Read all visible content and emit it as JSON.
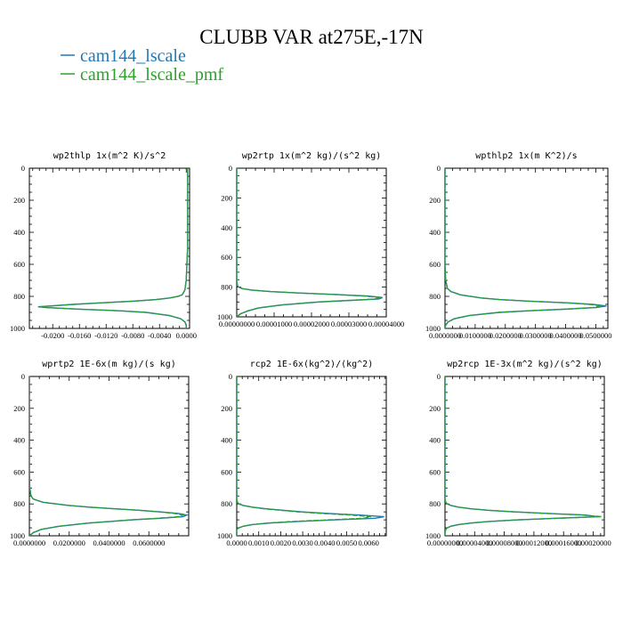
{
  "figure": {
    "title": "CLUBB VAR at275E,-17N",
    "legend": [
      {
        "label": "cam144_lscale",
        "color": "#1f77b4"
      },
      {
        "label": "cam144_lscale_pmf",
        "color": "#2ca02c"
      }
    ]
  },
  "chart_data": [
    {
      "type": "line",
      "title": "wp2thlp   1x(m^2 K)/s^2",
      "xlim": [
        -0.0235,
        0.0005
      ],
      "ylim": [
        1000,
        0
      ],
      "xticks": [
        "-0.0200",
        "-0.0160",
        "-0.0120",
        "-0.0080",
        "-0.0040",
        "0.0000"
      ],
      "xtick_values": [
        -0.02,
        -0.016,
        -0.012,
        -0.008,
        -0.004,
        0.0
      ],
      "yticks": [
        "0",
        "200",
        "400",
        "600",
        "800",
        "1000"
      ],
      "series": [
        {
          "name": "cam144_lscale",
          "color": "#1f77b4",
          "y": [
            0,
            100,
            200,
            300,
            400,
            500,
            600,
            700,
            760,
            790,
            800,
            810,
            820,
            830,
            840,
            850,
            860,
            865,
            870,
            880,
            890,
            900,
            920,
            940,
            960,
            980,
            1000
          ],
          "x": [
            0.0002,
            0.0002,
            0.0002,
            0.0002,
            0.0002,
            0.0002,
            0.0001,
            0.0,
            -0.0002,
            -0.0006,
            -0.0012,
            -0.0025,
            -0.0045,
            -0.008,
            -0.0125,
            -0.017,
            -0.0205,
            -0.0222,
            -0.021,
            -0.016,
            -0.01,
            -0.006,
            -0.0025,
            -0.0008,
            -0.0002,
            0.0,
            0.0
          ]
        },
        {
          "name": "cam144_lscale_pmf",
          "color": "#2ca02c",
          "y": [
            0,
            100,
            200,
            300,
            400,
            500,
            600,
            700,
            760,
            790,
            800,
            810,
            820,
            830,
            840,
            850,
            860,
            865,
            870,
            880,
            890,
            900,
            920,
            940,
            960,
            980,
            1000
          ],
          "x": [
            0.0002,
            0.0002,
            0.0002,
            0.0002,
            0.0002,
            0.0002,
            0.0001,
            0.0,
            -0.0002,
            -0.0006,
            -0.0012,
            -0.0025,
            -0.0045,
            -0.008,
            -0.0125,
            -0.0168,
            -0.0202,
            -0.0219,
            -0.0208,
            -0.0159,
            -0.0099,
            -0.006,
            -0.0025,
            -0.0008,
            -0.0002,
            0.0,
            0.0
          ]
        }
      ]
    },
    {
      "type": "line",
      "title": "wp2rtp   1x(m^2 kg)/(s^2 kg)",
      "xlim": [
        0.0,
        4e-05
      ],
      "ylim": [
        1000,
        0
      ],
      "xticks": [
        "0.00000000",
        "0.00001000",
        "0.00002000",
        "0.00003000",
        "0.00004000"
      ],
      "xtick_values": [
        0.0,
        1e-05,
        2e-05,
        3e-05,
        4e-05
      ],
      "yticks": [
        "0",
        "200",
        "400",
        "600",
        "800",
        "1000"
      ],
      "series": [
        {
          "name": "cam144_lscale",
          "color": "#1f77b4",
          "y": [
            0,
            200,
            400,
            600,
            700,
            760,
            790,
            800,
            810,
            820,
            830,
            840,
            850,
            860,
            870,
            880,
            890,
            900,
            920,
            940,
            960,
            980,
            1000
          ],
          "x": [
            0,
            0,
            0,
            0,
            0,
            0,
            2e-07,
            5e-07,
            1.5e-06,
            4e-06,
            9e-06,
            1.7e-05,
            2.7e-05,
            3.5e-05,
            3.9e-05,
            3.8e-05,
            3e-05,
            2.2e-05,
            1.2e-05,
            6e-06,
            3e-06,
            1e-06,
            0
          ]
        },
        {
          "name": "cam144_lscale_pmf",
          "color": "#2ca02c",
          "y": [
            0,
            200,
            400,
            600,
            700,
            760,
            790,
            800,
            810,
            820,
            830,
            840,
            850,
            860,
            870,
            880,
            890,
            900,
            920,
            940,
            960,
            980,
            1000
          ],
          "x": [
            0,
            0,
            0,
            0,
            0,
            0,
            2e-07,
            5e-07,
            1.5e-06,
            4e-06,
            9e-06,
            1.7e-05,
            2.6e-05,
            3.4e-05,
            3.85e-05,
            3.7e-05,
            2.95e-05,
            2.15e-05,
            1.18e-05,
            5.8e-06,
            2.9e-06,
            1e-06,
            0
          ]
        }
      ]
    },
    {
      "type": "line",
      "title": "wpthlp2   1x(m K^2)/s",
      "xlim": [
        0.0,
        0.054
      ],
      "ylim": [
        1000,
        0
      ],
      "xticks": [
        "0.0000000",
        "0.0100000",
        "0.0200000",
        "0.0300000",
        "0.0400000",
        "0.0500000"
      ],
      "xtick_values": [
        0.0,
        0.01,
        0.02,
        0.03,
        0.04,
        0.05
      ],
      "yticks": [
        "0",
        "200",
        "400",
        "600",
        "800",
        "1000"
      ],
      "series": [
        {
          "name": "cam144_lscale",
          "color": "#1f77b4",
          "y": [
            0,
            200,
            400,
            600,
            700,
            750,
            770,
            790,
            810,
            820,
            830,
            840,
            850,
            860,
            870,
            880,
            890,
            900,
            920,
            940,
            960,
            980,
            1000
          ],
          "x": [
            0,
            0,
            0,
            0,
            0.0002,
            0.0008,
            0.002,
            0.005,
            0.012,
            0.018,
            0.028,
            0.04,
            0.049,
            0.0535,
            0.05,
            0.04,
            0.028,
            0.018,
            0.008,
            0.003,
            0.001,
            0.0002,
            0
          ]
        },
        {
          "name": "cam144_lscale_pmf",
          "color": "#2ca02c",
          "y": [
            0,
            200,
            400,
            600,
            700,
            750,
            770,
            790,
            810,
            820,
            830,
            840,
            850,
            860,
            870,
            880,
            890,
            900,
            920,
            940,
            960,
            980,
            1000
          ],
          "x": [
            0,
            0,
            0,
            0,
            0.0002,
            0.0008,
            0.002,
            0.005,
            0.012,
            0.018,
            0.028,
            0.04,
            0.048,
            0.052,
            0.049,
            0.039,
            0.0275,
            0.0178,
            0.0079,
            0.003,
            0.001,
            0.0002,
            0
          ]
        }
      ]
    },
    {
      "type": "line",
      "title": "wprtp2   1E-6x(m kg)/(s kg)",
      "xlim": [
        0.0,
        0.08
      ],
      "ylim": [
        1000,
        0
      ],
      "xticks": [
        "0.0000000",
        "0.0200000",
        "0.0400000",
        "0.0600000"
      ],
      "xtick_values": [
        0.0,
        0.02,
        0.04,
        0.06
      ],
      "yticks": [
        "0",
        "200",
        "400",
        "600",
        "800",
        "1000"
      ],
      "series": [
        {
          "name": "cam144_lscale",
          "color": "#1f77b4",
          "y": [
            0,
            200,
            400,
            600,
            700,
            750,
            770,
            790,
            810,
            820,
            830,
            840,
            850,
            860,
            870,
            880,
            890,
            900,
            920,
            940,
            960,
            980,
            1000
          ],
          "x": [
            0,
            0,
            0,
            0,
            0.0002,
            0.0008,
            0.002,
            0.007,
            0.02,
            0.03,
            0.042,
            0.055,
            0.066,
            0.075,
            0.079,
            0.077,
            0.066,
            0.052,
            0.03,
            0.015,
            0.006,
            0.002,
            0
          ]
        },
        {
          "name": "cam144_lscale_pmf",
          "color": "#2ca02c",
          "y": [
            0,
            200,
            400,
            600,
            700,
            750,
            770,
            790,
            810,
            820,
            830,
            840,
            850,
            860,
            870,
            880,
            890,
            900,
            920,
            940,
            960,
            980,
            1000
          ],
          "x": [
            0,
            0,
            0,
            0,
            0.0002,
            0.0008,
            0.002,
            0.007,
            0.02,
            0.03,
            0.042,
            0.055,
            0.065,
            0.073,
            0.077,
            0.075,
            0.0645,
            0.051,
            0.0295,
            0.0148,
            0.006,
            0.002,
            0
          ]
        }
      ]
    },
    {
      "type": "line",
      "title": "rcp2   1E-6x(kg^2)/(kg^2)",
      "xlim": [
        0.0,
        0.0068
      ],
      "ylim": [
        1000,
        0
      ],
      "xticks": [
        "0.0000",
        "0.0010",
        "0.0020",
        "0.0030",
        "0.0040",
        "0.0050",
        "0.0060"
      ],
      "xtick_values": [
        0.0,
        0.001,
        0.002,
        0.003,
        0.004,
        0.005,
        0.006
      ],
      "yticks": [
        "0",
        "200",
        "400",
        "600",
        "800",
        "1000"
      ],
      "series": [
        {
          "name": "cam144_lscale",
          "color": "#1f77b4",
          "y": [
            0,
            200,
            400,
            600,
            700,
            770,
            790,
            800,
            810,
            820,
            830,
            840,
            850,
            860,
            870,
            880,
            890,
            900,
            910,
            920,
            930,
            940,
            950,
            960,
            980,
            1000
          ],
          "x": [
            0,
            0,
            0,
            0,
            0,
            0,
            3e-05,
            0.0001,
            0.0003,
            0.0007,
            0.0013,
            0.0021,
            0.003,
            0.0042,
            0.0056,
            0.0067,
            0.0063,
            0.0045,
            0.0028,
            0.0015,
            0.0007,
            0.0003,
            0.0001,
            0,
            0,
            0
          ]
        },
        {
          "name": "cam144_lscale_pmf",
          "color": "#2ca02c",
          "y": [
            0,
            200,
            400,
            600,
            700,
            770,
            790,
            800,
            810,
            820,
            830,
            840,
            850,
            860,
            870,
            880,
            890,
            900,
            910,
            920,
            930,
            940,
            950,
            960,
            980,
            1000
          ],
          "x": [
            0,
            0,
            0,
            0,
            0,
            0,
            3e-05,
            0.0001,
            0.0003,
            0.0007,
            0.0012,
            0.002,
            0.0028,
            0.0039,
            0.0052,
            0.0061,
            0.0058,
            0.0042,
            0.0026,
            0.0014,
            0.0007,
            0.0003,
            0.0001,
            0,
            0,
            0
          ]
        }
      ]
    },
    {
      "type": "line",
      "title": "wp2rcp   1E-3x(m^2 kg)/(s^2 kg)",
      "xlim": [
        0.0,
        0.000215
      ],
      "ylim": [
        1000,
        0
      ],
      "xticks": [
        "0.00000000",
        "0.00004000",
        "0.00008000",
        "0.00012000",
        "0.00016000",
        "0.00020000"
      ],
      "xtick_values": [
        0.0,
        4e-05,
        8e-05,
        0.00012,
        0.00016,
        0.0002
      ],
      "yticks": [
        "0",
        "200",
        "400",
        "600",
        "800",
        "1000"
      ],
      "series": [
        {
          "name": "cam144_lscale",
          "color": "#1f77b4",
          "y": [
            0,
            200,
            400,
            600,
            700,
            770,
            790,
            800,
            810,
            820,
            830,
            840,
            850,
            860,
            870,
            880,
            890,
            900,
            910,
            920,
            930,
            940,
            950,
            960,
            980,
            1000
          ],
          "x": [
            0,
            0,
            0,
            0,
            0,
            0,
            1e-06,
            3e-06,
            8e-06,
            1.8e-05,
            3.4e-05,
            5.8e-05,
            9.5e-05,
            0.00014,
            0.00019,
            0.000205,
            0.00015,
            0.0001,
            6e-05,
            3.5e-05,
            1.8e-05,
            8e-06,
            3e-06,
            1e-06,
            0,
            0
          ]
        },
        {
          "name": "cam144_lscale_pmf",
          "color": "#2ca02c",
          "y": [
            0,
            200,
            400,
            600,
            700,
            770,
            790,
            800,
            810,
            820,
            830,
            840,
            850,
            860,
            870,
            880,
            890,
            900,
            910,
            920,
            930,
            940,
            950,
            960,
            980,
            1000
          ],
          "x": [
            0,
            0,
            0,
            0,
            0,
            0,
            1e-06,
            3e-06,
            8e-06,
            1.8e-05,
            3.4e-05,
            5.8e-05,
            9.4e-05,
            0.000138,
            0.000186,
            0.000212,
            0.000152,
            9.8e-05,
            5.9e-05,
            3.4e-05,
            1.8e-05,
            8e-06,
            3e-06,
            1e-06,
            0,
            0
          ]
        }
      ]
    }
  ]
}
